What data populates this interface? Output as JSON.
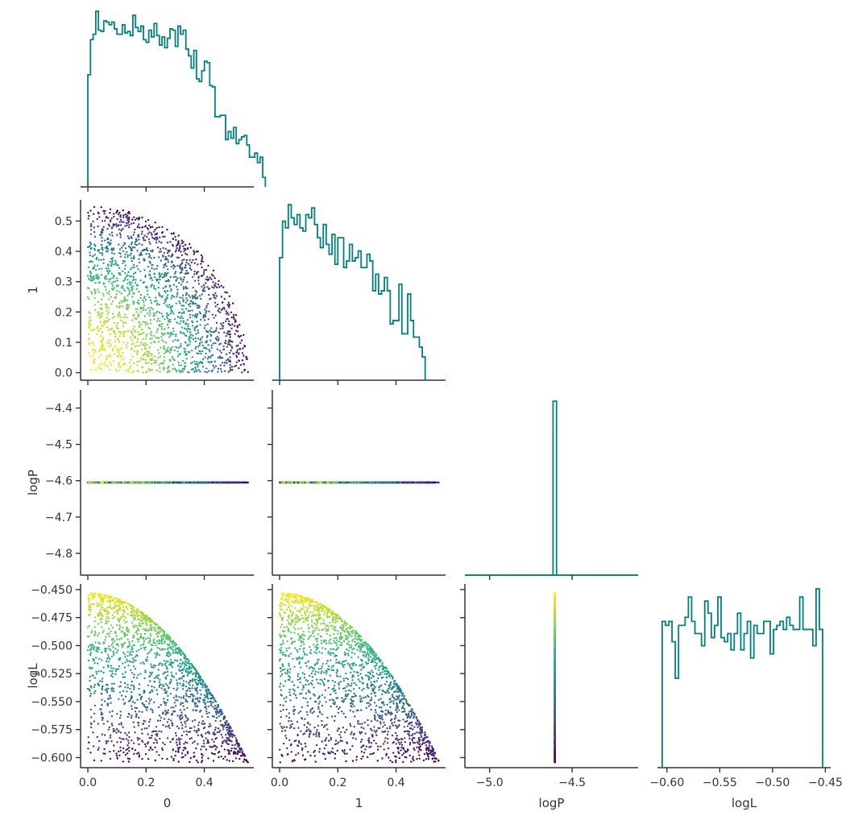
{
  "chart_data": {
    "type": "scatter",
    "layout": "corner",
    "title": "",
    "variables": [
      "0",
      "1",
      "logP",
      "logL"
    ],
    "colormap": "viridis",
    "color_by": "logL",
    "hist_color": "#008080",
    "axes": {
      "0": {
        "range": [
          -0.025,
          0.57
        ],
        "ticks": [
          0.0,
          0.2,
          0.4
        ],
        "tick_labels": [
          "0.0",
          "0.2",
          "0.4"
        ]
      },
      "1": {
        "range": [
          -0.025,
          0.57
        ],
        "ticks": [
          0.0,
          0.1,
          0.2,
          0.3,
          0.4,
          0.5
        ],
        "tick_labels": [
          "0.0",
          "0.1",
          "0.2",
          "0.3",
          "0.4",
          "0.5"
        ],
        "xticks": [
          0.0,
          0.2,
          0.4
        ],
        "xtick_labels": [
          "0.0",
          "0.2",
          "0.4"
        ]
      },
      "logP": {
        "range": [
          -4.86,
          -4.35
        ],
        "ticks": [
          -4.4,
          -4.5,
          -4.6,
          -4.7,
          -4.8
        ],
        "tick_labels": [
          "−4.4",
          "−4.5",
          "−4.6",
          "−4.7",
          "−4.8"
        ],
        "xrange": [
          -5.15,
          -4.1
        ],
        "xticks": [
          -5.0,
          -4.5
        ],
        "xtick_labels": [
          "−5.0",
          "−4.5"
        ]
      },
      "logL": {
        "range": [
          -0.609,
          -0.445
        ],
        "ticks": [
          -0.45,
          -0.475,
          -0.5,
          -0.525,
          -0.55,
          -0.575,
          -0.6
        ],
        "tick_labels": [
          "−0.450",
          "−0.475",
          "−0.500",
          "−0.525",
          "−0.550",
          "−0.575",
          "−0.600"
        ],
        "xticks": [
          -0.6,
          -0.55,
          -0.5,
          -0.45
        ],
        "xtick_labels": [
          "−0.60",
          "−0.55",
          "−0.50",
          "−0.45"
        ]
      }
    },
    "constants": {
      "logP": -4.605
    },
    "relation": "logL = -0.453 - 0.5 * (x0^2 + x1^2); points sampled in quarter disk of radius ~0.55",
    "n_points": 1800,
    "histograms": {
      "0": {
        "bin_start": 0.0,
        "bin_width": 0.0091,
        "values": [
          83,
          109,
          113,
          130,
          116,
          115,
          123,
          122,
          120,
          122,
          117,
          113,
          113,
          120,
          114,
          115,
          112,
          127,
          118,
          115,
          119,
          109,
          107,
          116,
          111,
          121,
          112,
          105,
          111,
          103,
          110,
          117,
          116,
          104,
          119,
          113,
          116,
          102,
          97,
          88,
          101,
          80,
          78,
          86,
          93,
          92,
          75,
          74,
          52,
          52,
          53,
          53,
          35,
          41,
          36,
          44,
          32,
          35,
          37,
          38,
          31,
          22,
          22,
          25,
          18,
          22,
          7
        ]
      },
      "1": {
        "bin_start": 0.0,
        "bin_width": 0.01,
        "values": [
          37,
          48,
          46,
          53,
          49,
          47,
          50,
          46,
          45,
          50,
          49,
          52,
          47,
          43,
          40,
          47,
          41,
          38,
          44,
          35,
          43,
          43,
          34,
          36,
          41,
          36,
          37,
          39,
          34,
          34,
          38,
          36,
          27,
          32,
          26,
          27,
          31,
          27,
          17,
          18,
          18,
          29,
          14,
          14,
          26,
          18,
          13,
          13,
          10,
          7
        ]
      },
      "logP": {
        "range": [
          -5.15,
          -4.1
        ],
        "spike_x": -4.605,
        "spike_width": 0.021,
        "spike_height": 1.0
      },
      "logL": {
        "bin_start": -0.6045,
        "bin_width": 0.0031,
        "values": [
          36,
          35,
          36,
          31,
          22,
          35,
          35,
          37,
          42,
          36,
          33,
          33,
          30,
          41,
          38,
          32,
          35,
          42,
          32,
          31,
          33,
          29,
          33,
          38,
          29,
          33,
          36,
          27,
          35,
          33,
          33,
          36,
          36,
          28,
          34,
          35,
          36,
          34,
          37,
          35,
          34,
          34,
          42,
          34,
          34,
          34,
          30,
          44,
          34
        ]
      }
    }
  }
}
